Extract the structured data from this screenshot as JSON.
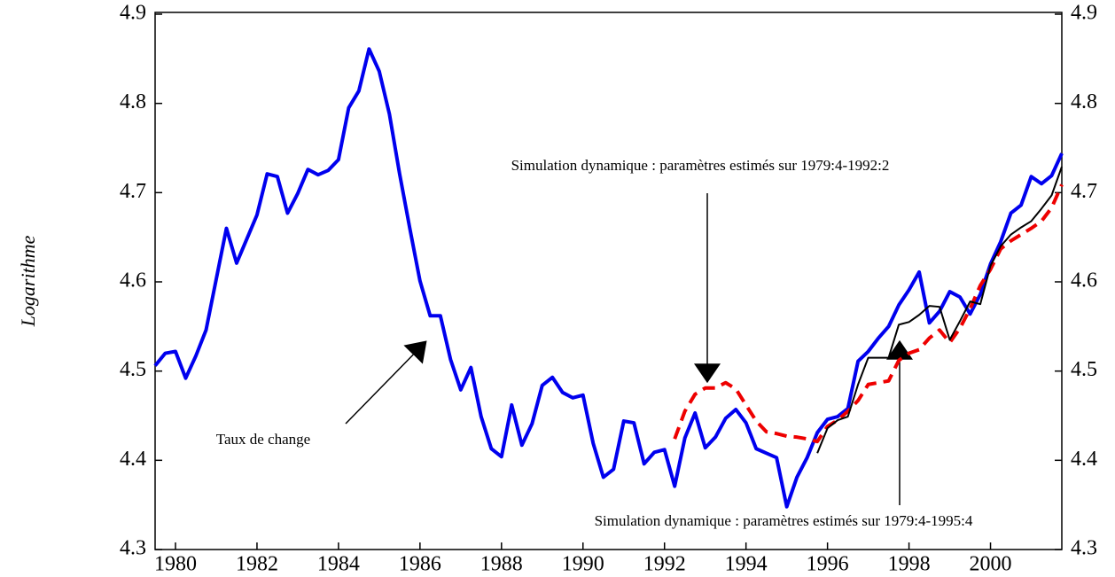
{
  "chart_data": {
    "type": "line",
    "y_label": "Logarithme",
    "x": [
      1979.5,
      1979.75,
      1980,
      1980.25,
      1980.5,
      1980.75,
      1981,
      1981.25,
      1981.5,
      1981.75,
      1982,
      1982.25,
      1982.5,
      1982.75,
      1983,
      1983.25,
      1983.5,
      1983.75,
      1984,
      1984.25,
      1984.5,
      1984.75,
      1985,
      1985.25,
      1985.5,
      1985.75,
      1986,
      1986.25,
      1986.5,
      1986.75,
      1987,
      1987.25,
      1987.5,
      1987.75,
      1988,
      1988.25,
      1988.5,
      1988.75,
      1989,
      1989.25,
      1989.5,
      1989.75,
      1990,
      1990.25,
      1990.5,
      1990.75,
      1991,
      1991.25,
      1991.5,
      1991.75,
      1992,
      1992.25,
      1992.5,
      1992.75,
      1993,
      1993.25,
      1993.5,
      1993.75,
      1994,
      1994.25,
      1994.5,
      1994.75,
      1995,
      1995.25,
      1995.5,
      1995.75,
      1996,
      1996.25,
      1996.5,
      1996.75,
      1997,
      1997.25,
      1997.5,
      1997.75,
      1998,
      1998.25,
      1998.5,
      1998.75,
      1999,
      1999.25,
      1999.5,
      1999.75,
      2000,
      2000.25,
      2000.5,
      2000.75,
      2001,
      2001.25,
      2001.5,
      2001.75
    ],
    "series": [
      {
        "color": "#0000ee",
        "style": "solid",
        "width": 4,
        "values": [
          4.506,
          4.52,
          4.522,
          4.492,
          4.517,
          4.546,
          4.603,
          4.66,
          4.621,
          4.648,
          4.675,
          4.721,
          4.718,
          4.677,
          4.699,
          4.726,
          4.72,
          4.725,
          4.737,
          4.795,
          4.814,
          4.861,
          4.836,
          4.788,
          4.721,
          4.66,
          4.601,
          4.562,
          4.562,
          4.513,
          4.479,
          4.504,
          4.449,
          4.413,
          4.404,
          4.462,
          4.417,
          4.441,
          4.484,
          4.493,
          4.476,
          4.47,
          4.473,
          4.419,
          4.381,
          4.39,
          4.444,
          4.442,
          4.396,
          4.409,
          4.412,
          4.371,
          4.425,
          4.453,
          4.414,
          4.426,
          4.447,
          4.457,
          4.442,
          4.413,
          4.408,
          4.403,
          4.348,
          4.381,
          4.403,
          4.431,
          4.446,
          4.449,
          4.458,
          4.511,
          4.522,
          4.537,
          4.55,
          4.574,
          4.591,
          4.611,
          4.554,
          4.567,
          4.589,
          4.583,
          4.564,
          4.586,
          4.62,
          4.645,
          4.677,
          4.686,
          4.718,
          4.71,
          4.719,
          4.744
        ]
      },
      {
        "color": "#ee0000",
        "style": "dashed",
        "width": 4,
        "values": [
          null,
          null,
          null,
          null,
          null,
          null,
          null,
          null,
          null,
          null,
          null,
          null,
          null,
          null,
          null,
          null,
          null,
          null,
          null,
          null,
          null,
          null,
          null,
          null,
          null,
          null,
          null,
          null,
          null,
          null,
          null,
          null,
          null,
          null,
          null,
          null,
          null,
          null,
          null,
          null,
          null,
          null,
          null,
          null,
          null,
          null,
          null,
          null,
          null,
          null,
          null,
          4.424,
          4.455,
          4.474,
          4.481,
          4.481,
          4.487,
          4.48,
          4.462,
          4.444,
          4.432,
          4.43,
          4.427,
          4.426,
          4.424,
          4.421,
          4.438,
          4.445,
          4.455,
          4.467,
          4.485,
          4.487,
          4.489,
          4.512,
          4.52,
          4.524,
          4.537,
          4.546,
          4.532,
          4.548,
          4.57,
          4.596,
          4.614,
          4.637,
          4.646,
          4.653,
          4.66,
          4.668,
          4.683,
          4.709
        ]
      },
      {
        "color": "#000000",
        "style": "solid",
        "width": 2,
        "values": [
          null,
          null,
          null,
          null,
          null,
          null,
          null,
          null,
          null,
          null,
          null,
          null,
          null,
          null,
          null,
          null,
          null,
          null,
          null,
          null,
          null,
          null,
          null,
          null,
          null,
          null,
          null,
          null,
          null,
          null,
          null,
          null,
          null,
          null,
          null,
          null,
          null,
          null,
          null,
          null,
          null,
          null,
          null,
          null,
          null,
          null,
          null,
          null,
          null,
          null,
          null,
          null,
          null,
          null,
          null,
          null,
          null,
          null,
          null,
          null,
          null,
          null,
          null,
          null,
          null,
          4.408,
          4.436,
          4.445,
          4.449,
          4.485,
          4.515,
          4.515,
          4.515,
          4.552,
          4.555,
          4.563,
          4.573,
          4.572,
          4.535,
          4.556,
          4.578,
          4.575,
          4.618,
          4.64,
          4.653,
          4.661,
          4.668,
          4.682,
          4.697,
          4.729
        ]
      }
    ],
    "annotations": [
      "Simulation dynamique : paramètres estimés sur 1979:4-1992:2",
      "Taux de change",
      "Simulation dynamique : paramètres estimés sur 1979:4-1995:4"
    ],
    "xlim": [
      1979.5,
      2001.75
    ],
    "xticks": [
      1980,
      1982,
      1984,
      1986,
      1988,
      1990,
      1992,
      1994,
      1996,
      1998,
      2000
    ],
    "ylim": [
      4.3,
      4.9
    ],
    "yticks": [
      4.3,
      4.4,
      4.5,
      4.6,
      4.7,
      4.8,
      4.9
    ],
    "y2lim": [
      4.3,
      4.9
    ],
    "y2ticks": [
      4.3,
      4.4,
      4.5,
      4.6,
      4.7,
      4.8,
      4.9
    ]
  }
}
